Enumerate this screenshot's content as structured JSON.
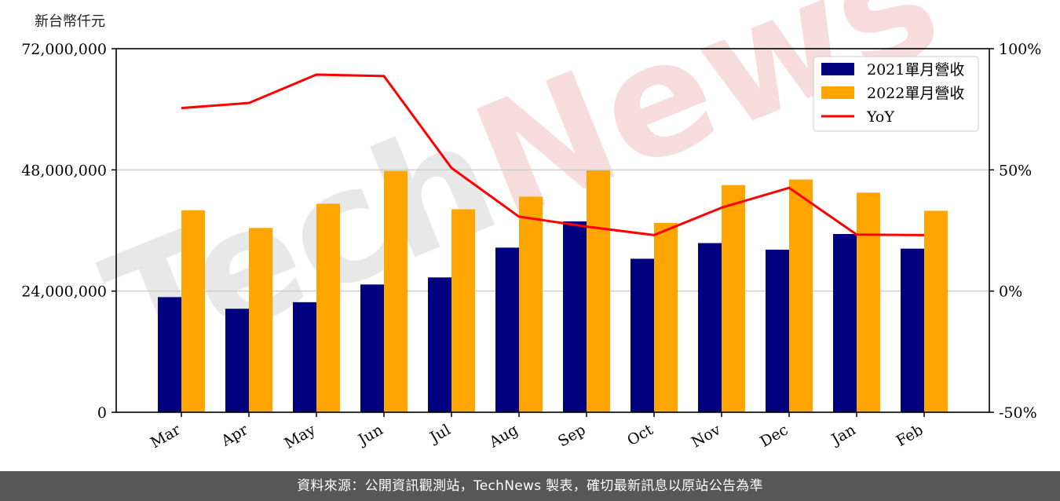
{
  "chart_data": {
    "type": "bar",
    "unit_label": "新台幣仟元",
    "categories": [
      "Mar",
      "Apr",
      "May",
      "Jun",
      "Jul",
      "Aug",
      "Sep",
      "Oct",
      "Nov",
      "Dec",
      "Jan",
      "Feb"
    ],
    "series": [
      {
        "name": "2021單月營收",
        "type": "bar",
        "color": "#000080",
        "values": [
          22800000,
          20500000,
          21800000,
          25300000,
          26700000,
          32600000,
          37800000,
          30400000,
          33500000,
          32200000,
          35300000,
          32400000
        ]
      },
      {
        "name": "2022單月營收",
        "type": "bar",
        "color": "#FFA500",
        "values": [
          40000000,
          36500000,
          41300000,
          47800000,
          40200000,
          42700000,
          47900000,
          37500000,
          45000000,
          46100000,
          43500000,
          39900000
        ]
      },
      {
        "name": "YoY",
        "type": "line",
        "axis": "right",
        "color": "#FF0000",
        "values": [
          75.5,
          77.6,
          89.3,
          88.7,
          50.8,
          30.7,
          26.6,
          23.1,
          34.4,
          42.6,
          23.3,
          23.1
        ]
      }
    ],
    "y_left": {
      "min": 0,
      "max": 72000000,
      "ticks": [
        "0",
        "24,000,000",
        "48,000,000",
        "72,000,000"
      ],
      "tick_values": [
        0,
        24000000,
        48000000,
        72000000
      ]
    },
    "y_right": {
      "min": -50,
      "max": 100,
      "ticks": [
        "-50%",
        "0%",
        "50%",
        "100%"
      ],
      "tick_values": [
        -50,
        0,
        50,
        100
      ]
    },
    "grid": "horizontal",
    "legend_position": "top-right",
    "watermark": "TechNews"
  },
  "footer": {
    "source_text": "資料來源：公開資訊觀測站，TechNews 製表，確切最新訊息以原站公告為準"
  }
}
